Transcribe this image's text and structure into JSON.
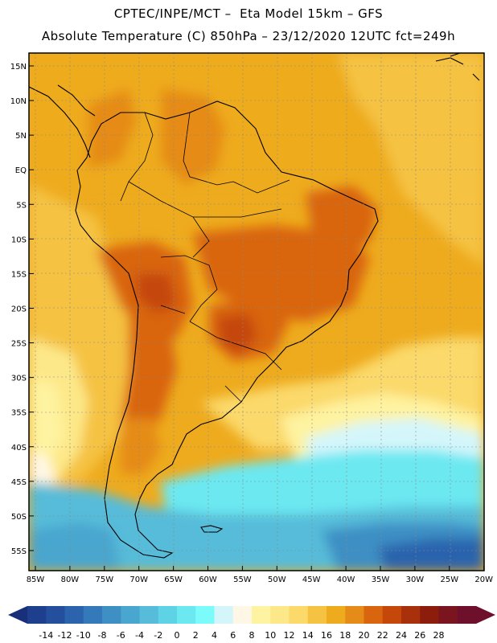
{
  "title_line1": "CPTEC/INPE/MCT –  Eta Model 15km – GFS",
  "title_line2": "Absolute Temperature (C) 850hPa – 23/12/2020 12UTC fct=249h",
  "lat_ticks": [
    "15N",
    "10N",
    "5N",
    "EQ",
    "5S",
    "10S",
    "15S",
    "20S",
    "25S",
    "30S",
    "35S",
    "40S",
    "45S",
    "50S",
    "55S"
  ],
  "lon_ticks": [
    "85W",
    "80W",
    "75W",
    "70W",
    "65W",
    "60W",
    "55W",
    "50W",
    "45W",
    "40W",
    "35W",
    "30W",
    "25W",
    "20W"
  ],
  "colorbar": {
    "labels": [
      "-14",
      "-12",
      "-10",
      "-8",
      "-6",
      "-4",
      "-2",
      "0",
      "2",
      "4",
      "6",
      "8",
      "10",
      "12",
      "14",
      "16",
      "18",
      "20",
      "22",
      "24",
      "26",
      "28"
    ],
    "colors": [
      "#1d3f8e",
      "#234f9c",
      "#2b63ad",
      "#3479b9",
      "#3d8fc4",
      "#48a6cf",
      "#56bcd9",
      "#5fd3e6",
      "#6ce8f1",
      "#7cfbfb",
      "#d4f6fb",
      "#fff7e6",
      "#fef3a0",
      "#fde889",
      "#fbd96a",
      "#f5c242",
      "#eeab1e",
      "#e58b18",
      "#d9650f",
      "#c54709",
      "#a8300a",
      "#8c1d0d",
      "#7a1520",
      "#6e0f2c"
    ],
    "left_arrow_color": "#1a2f7a",
    "right_arrow_color": "#6e0f2c"
  }
}
